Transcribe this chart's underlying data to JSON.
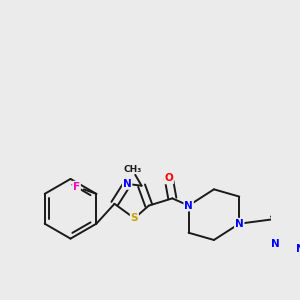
{
  "background_color": "#ebebeb",
  "bond_color": "#1a1a1a",
  "atom_colors": {
    "N": "#0000ff",
    "S": "#c8a000",
    "F": "#ff00bb",
    "O": "#ff0000",
    "C": "#1a1a1a"
  },
  "figsize": [
    3.0,
    3.0
  ],
  "dpi": 100,
  "lw": 1.4,
  "fs": 7.5
}
